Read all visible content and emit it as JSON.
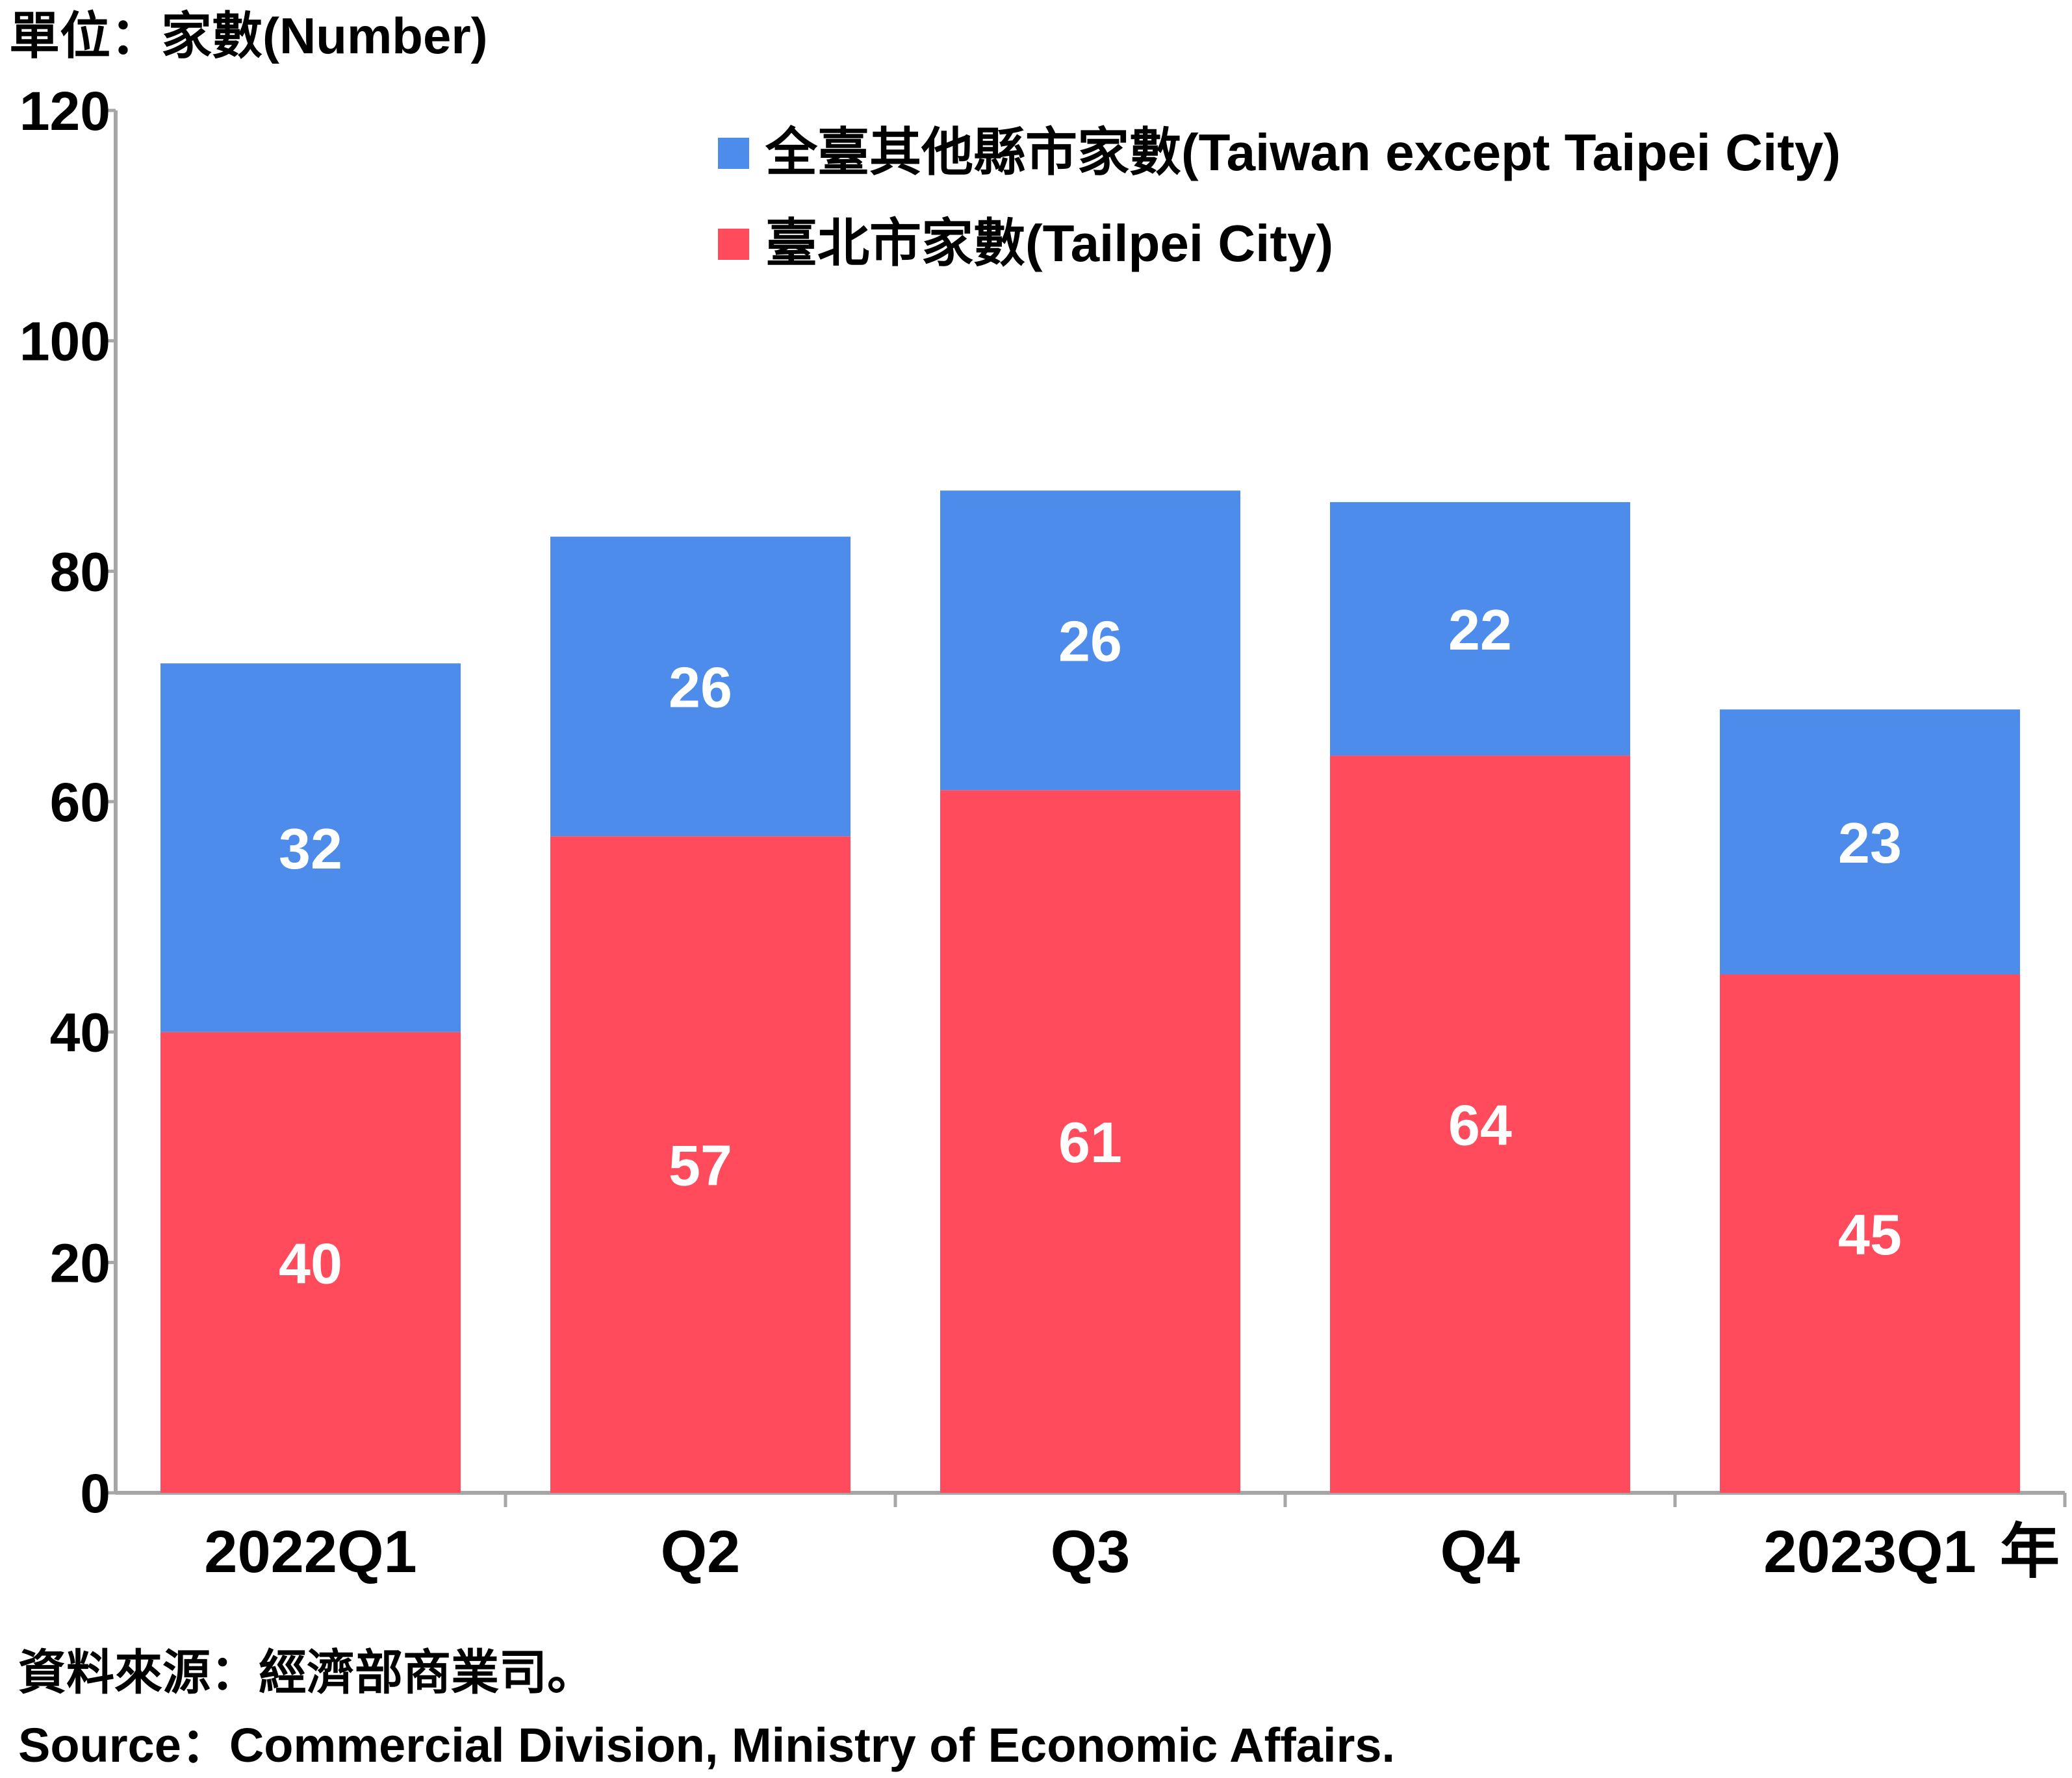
{
  "chart_data": {
    "type": "bar",
    "stacked": true,
    "unit_label": "單位：家數(Number)",
    "categories": [
      "2022Q1",
      "Q2",
      "Q3",
      "Q4",
      "2023Q1"
    ],
    "x_suffix": "年",
    "series": [
      {
        "name": "臺北市家數(Tailpei City)",
        "values": [
          40,
          57,
          61,
          64,
          45
        ],
        "color": "#ff4b5c"
      },
      {
        "name": "全臺其他縣市家數(Taiwan except Taipei City)",
        "values": [
          32,
          26,
          26,
          22,
          23
        ],
        "color": "#4e8cec"
      }
    ],
    "ylim": [
      0,
      120
    ],
    "yticks": [
      0,
      20,
      40,
      60,
      80,
      100,
      120
    ],
    "legend_position": "top-right",
    "grid": false
  },
  "footer": {
    "source_zh": "資料來源：經濟部商業司。",
    "source_en": "Source：Commercial Division, Ministry of Economic Affairs."
  }
}
